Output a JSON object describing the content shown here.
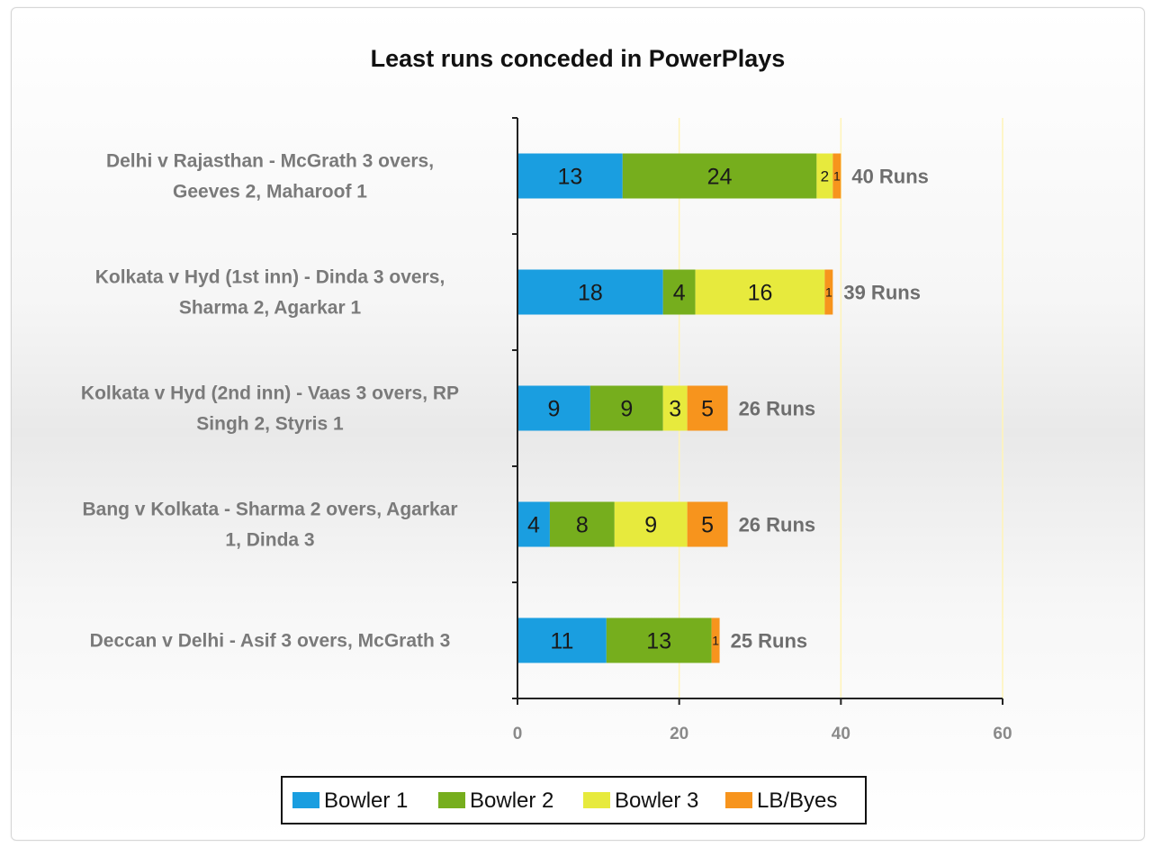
{
  "chart_data": {
    "type": "bar",
    "orientation": "horizontal",
    "stacked": true,
    "title": "Least runs conceded in PowerPlays",
    "categories": [
      [
        "Delhi v Rajasthan - McGrath 3 overs,",
        "Geeves 2, Maharoof 1"
      ],
      [
        "Kolkata v Hyd (1st inn) - Dinda 3 overs,",
        "Sharma 2, Agarkar 1"
      ],
      [
        "Kolkata v Hyd (2nd inn) - Vaas 3 overs, RP",
        "Singh 2, Styris 1"
      ],
      [
        "Bang v Kolkata - Sharma 2 overs, Agarkar",
        "1, Dinda 3"
      ],
      [
        "Deccan v Delhi - Asif 3 overs, McGrath 3"
      ]
    ],
    "series": [
      {
        "name": "Bowler 1",
        "color": "#1a9ee0",
        "values": [
          13,
          18,
          9,
          4,
          11
        ]
      },
      {
        "name": "Bowler 2",
        "color": "#76ae1d",
        "values": [
          24,
          4,
          9,
          8,
          13
        ]
      },
      {
        "name": "Bowler 3",
        "color": "#e7ea3d",
        "values": [
          2,
          16,
          3,
          9,
          0
        ]
      },
      {
        "name": "LB/Byes",
        "color": "#f7941d",
        "values": [
          1,
          1,
          5,
          5,
          1
        ]
      }
    ],
    "totals": [
      "40 Runs",
      "39 Runs",
      "26 Runs",
      "26 Runs",
      "25 Runs"
    ],
    "xlim": [
      0,
      60
    ],
    "xticks": [
      0,
      20,
      40,
      60
    ],
    "grid": "vertical",
    "legend": "bottom"
  }
}
